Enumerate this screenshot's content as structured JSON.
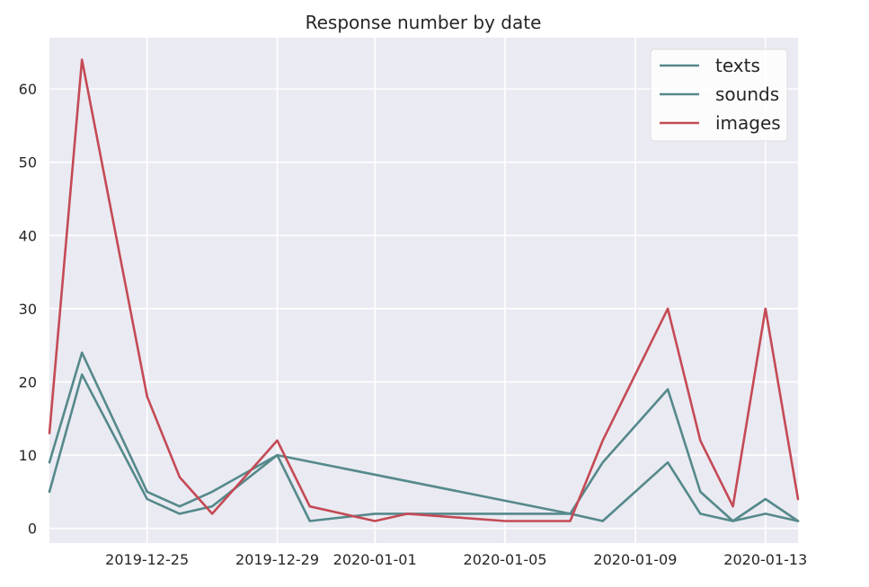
{
  "chart_data": {
    "type": "line",
    "title": "Response number by date",
    "xlabel": "",
    "ylabel": "",
    "x": [
      "2019-12-22",
      "2019-12-23",
      "2019-12-25",
      "2019-12-26",
      "2019-12-27",
      "2019-12-29",
      "2019-12-30",
      "2020-01-01",
      "2020-01-02",
      "2020-01-05",
      "2020-01-07",
      "2020-01-08",
      "2020-01-10",
      "2020-01-11",
      "2020-01-12",
      "2020-01-13",
      "2020-01-14"
    ],
    "xlim": [
      "2019-12-22",
      "2020-01-14"
    ],
    "xticks": [
      "2019-12-25",
      "2019-12-29",
      "2020-01-01",
      "2020-01-05",
      "2020-01-09",
      "2020-01-13"
    ],
    "ylim": [
      -2,
      67
    ],
    "yticks": [
      0,
      10,
      20,
      30,
      40,
      50,
      60
    ],
    "grid": true,
    "legend_position": "top-right",
    "series": [
      {
        "name": "texts",
        "color": "#55898b",
        "values": [
          9,
          24,
          5,
          3,
          5,
          10,
          null,
          null,
          null,
          null,
          2,
          1,
          9,
          2,
          1,
          2,
          1
        ]
      },
      {
        "name": "sounds",
        "color": "#55898b",
        "values": [
          5,
          21,
          4,
          2,
          3,
          10,
          1,
          2,
          2,
          2,
          2,
          9,
          19,
          5,
          1,
          4,
          1
        ]
      },
      {
        "name": "images",
        "color": "#c44a55",
        "values": [
          13,
          64,
          18,
          7,
          2,
          12,
          3,
          1,
          2,
          1,
          1,
          12,
          30,
          12,
          3,
          30,
          4
        ]
      }
    ]
  }
}
